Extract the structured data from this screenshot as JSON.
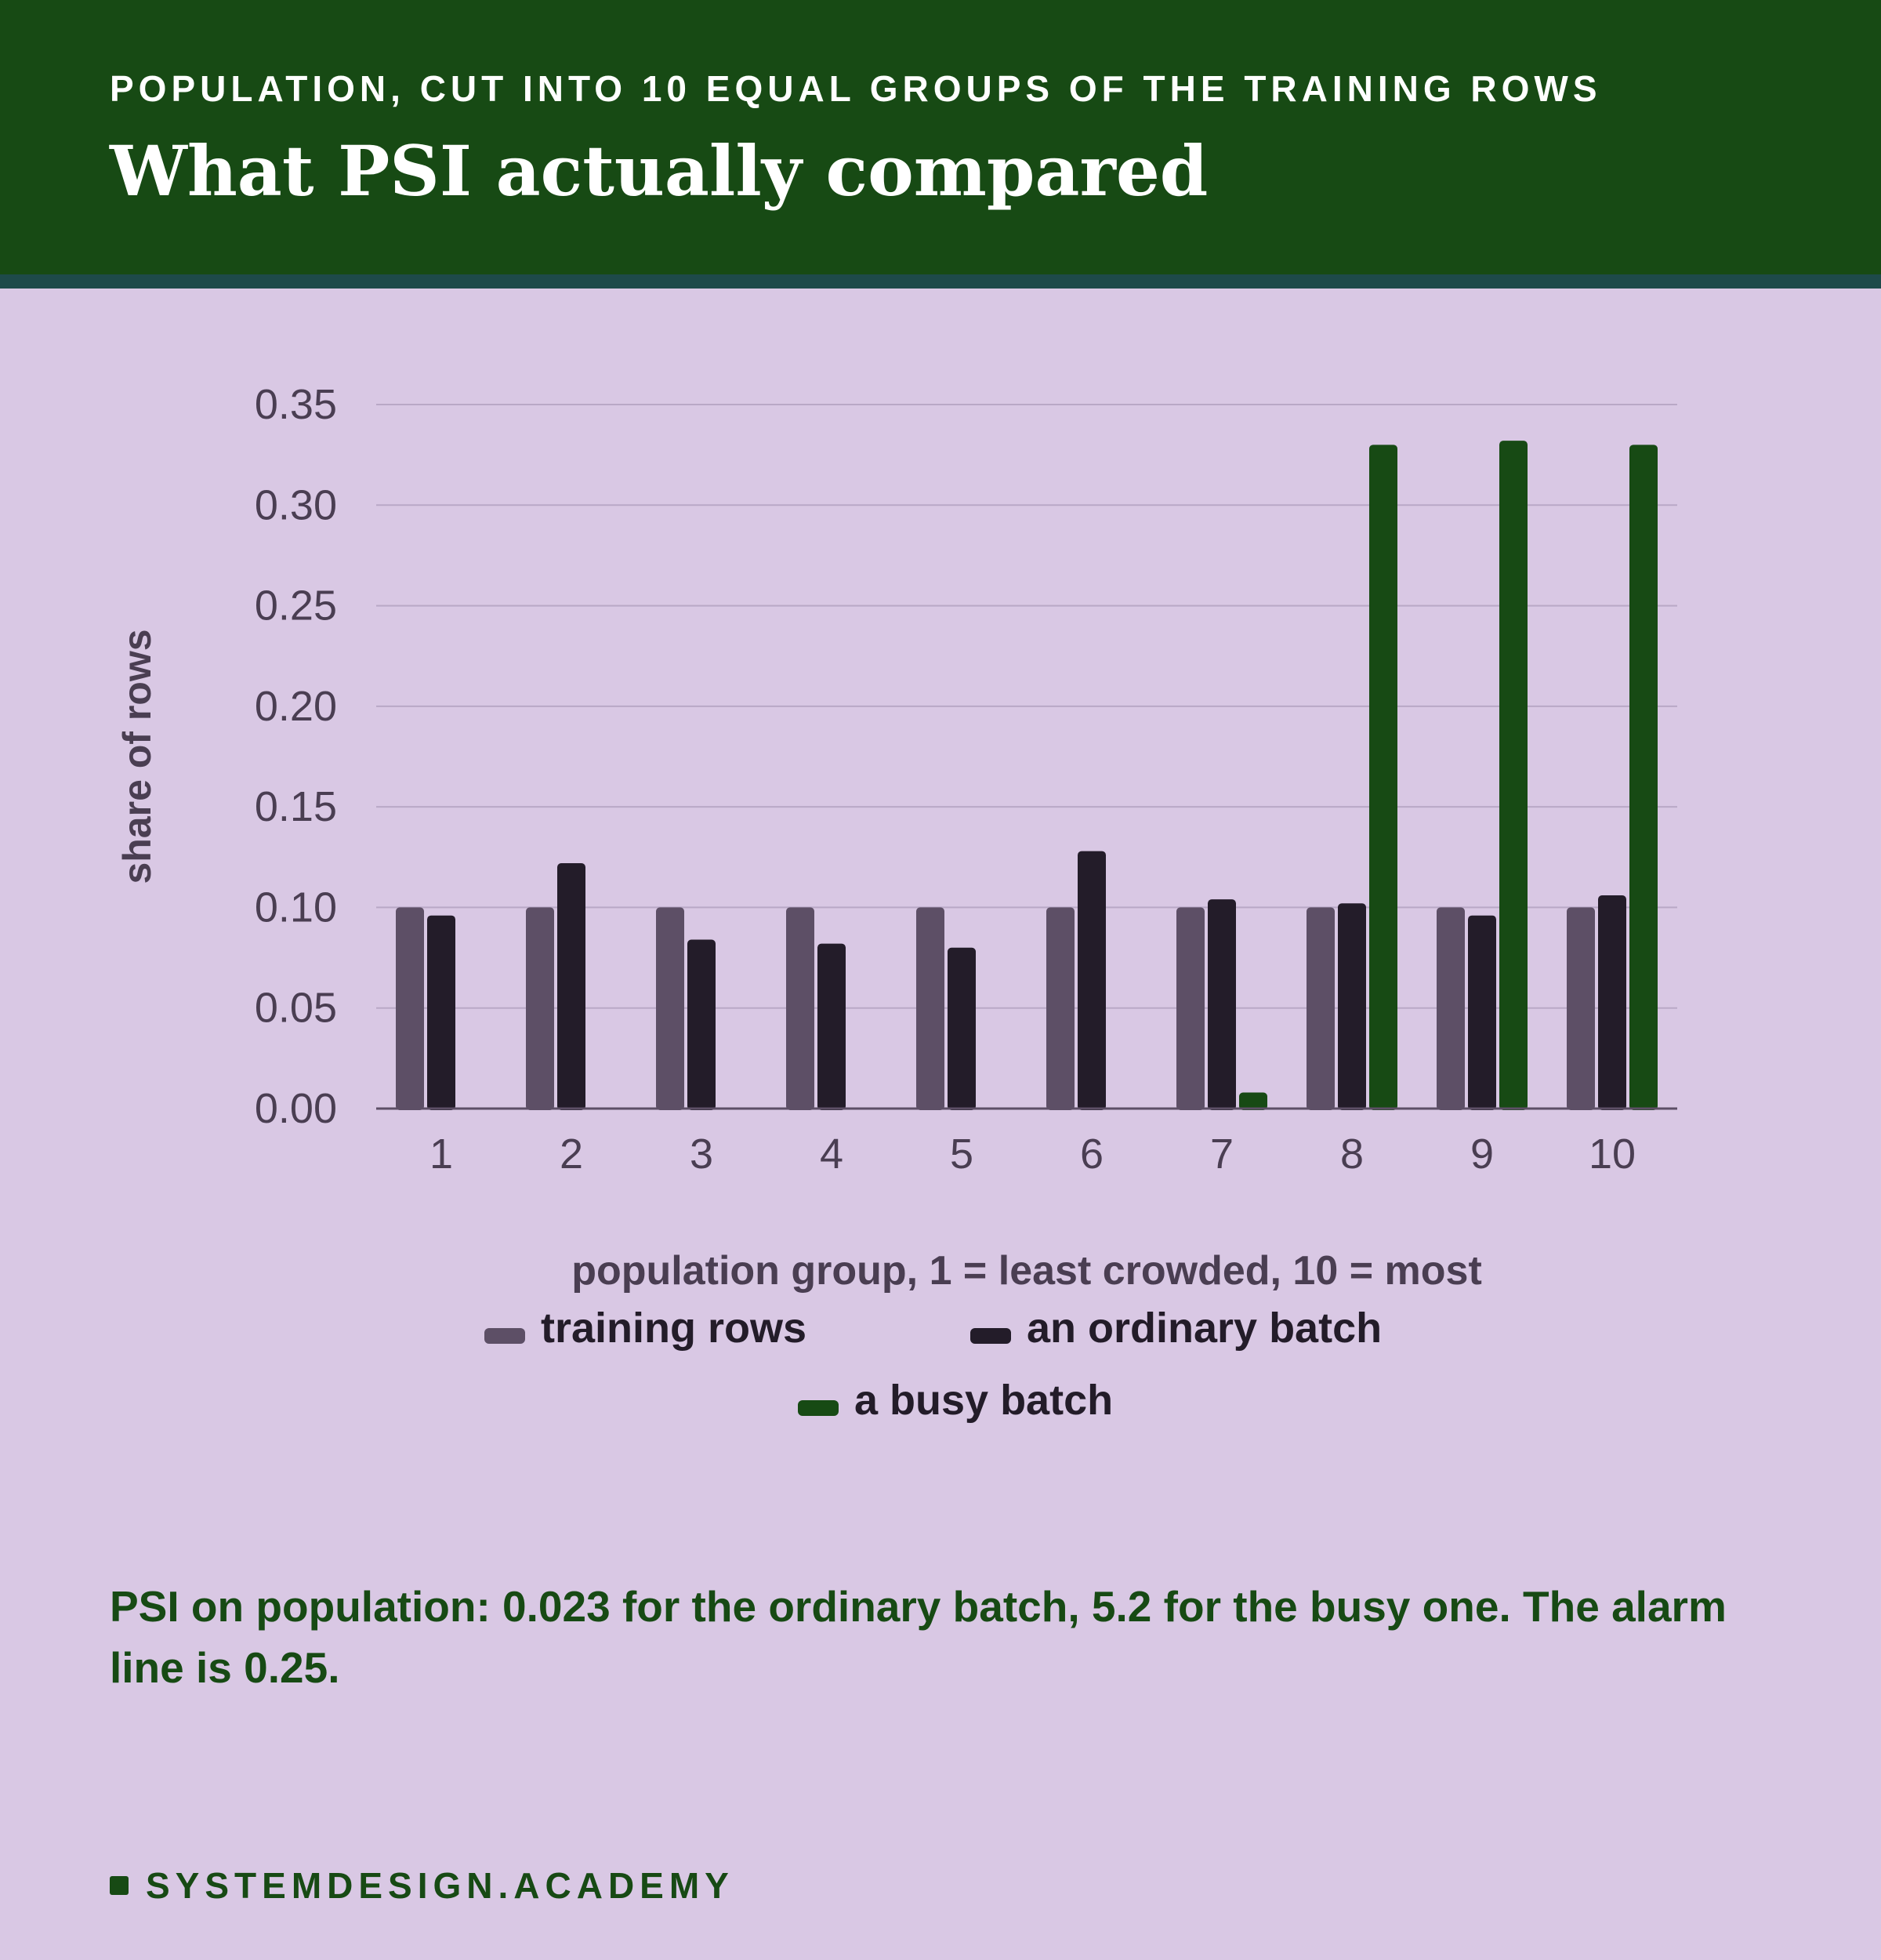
{
  "header": {
    "kicker": "POPULATION, CUT INTO 10 EQUAL GROUPS OF THE TRAINING ROWS",
    "title": "What PSI actually compared"
  },
  "chart_data": {
    "type": "bar",
    "categories": [
      "1",
      "2",
      "3",
      "4",
      "5",
      "6",
      "7",
      "8",
      "9",
      "10"
    ],
    "series": [
      {
        "name": "training rows",
        "color": "#5d4f66",
        "values": [
          0.1,
          0.1,
          0.1,
          0.1,
          0.1,
          0.1,
          0.1,
          0.1,
          0.1,
          0.1
        ]
      },
      {
        "name": "an ordinary batch",
        "color": "#231c29",
        "values": [
          0.096,
          0.122,
          0.084,
          0.082,
          0.08,
          0.128,
          0.104,
          0.102,
          0.096,
          0.106
        ]
      },
      {
        "name": "a busy batch",
        "color": "#174a14",
        "values": [
          0,
          0,
          0,
          0,
          0,
          0,
          0.008,
          0.33,
          0.332,
          0.33
        ]
      }
    ],
    "xlabel": "population group, 1 = least crowded, 10 = most",
    "ylabel": "share of rows",
    "ylim": [
      0,
      0.35
    ],
    "yticks": [
      "0.00",
      "0.05",
      "0.10",
      "0.15",
      "0.20",
      "0.25",
      "0.30",
      "0.35"
    ],
    "grid": true,
    "legend_position": "bottom"
  },
  "note": "PSI on population: 0.023 for the ordinary batch, 5.2 for the busy one. The alarm line is 0.25.",
  "footer": {
    "brand": "SYSTEMDESIGN.ACADEMY"
  }
}
